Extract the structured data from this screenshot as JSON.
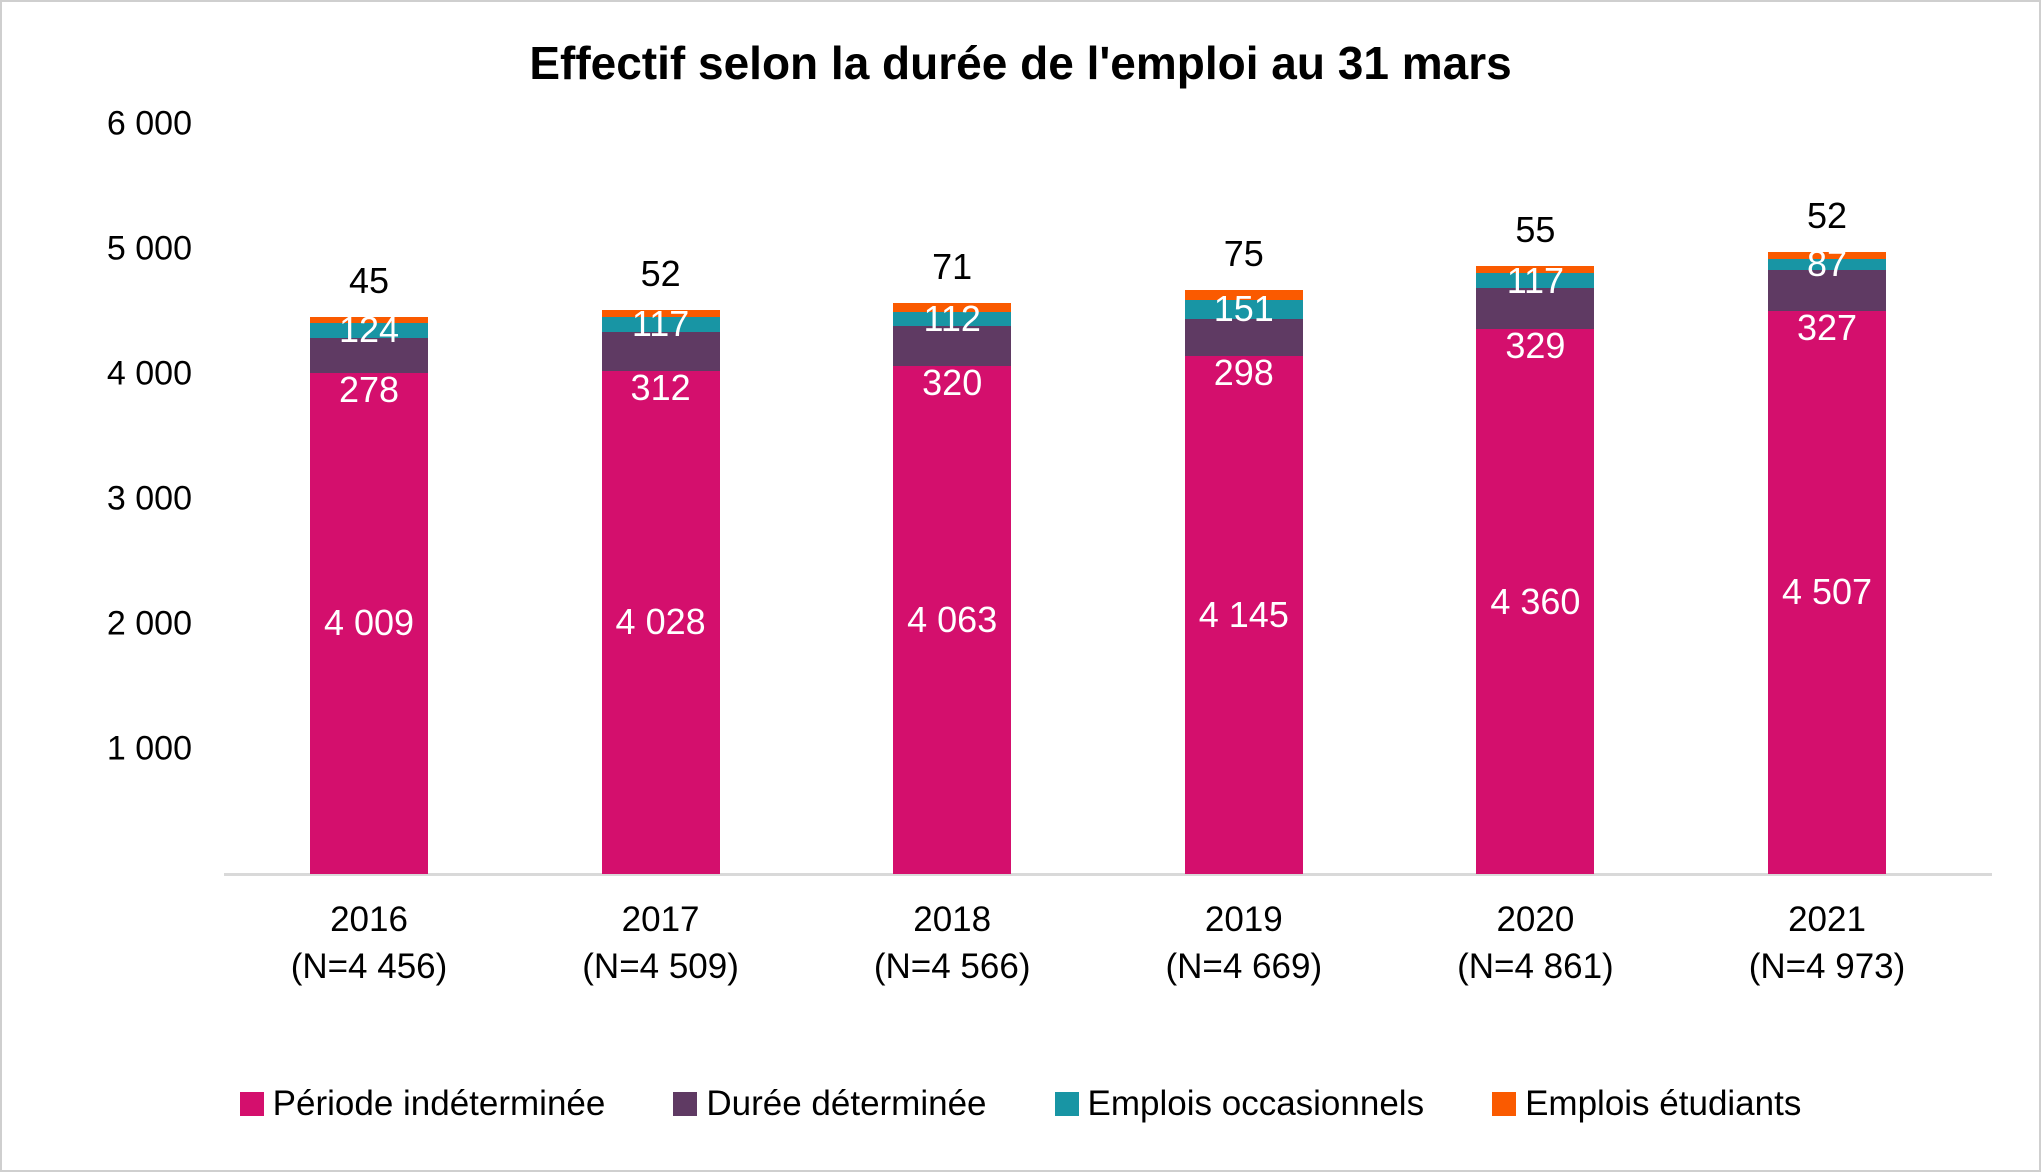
{
  "title": "Effectif selon la durée de l'emploi au 31 mars",
  "chart_data": {
    "type": "bar",
    "stacked": true,
    "title": "Effectif selon la durée de l'emploi au 31 mars",
    "categories": [
      "2016",
      "2017",
      "2018",
      "2019",
      "2020",
      "2021"
    ],
    "category_sublabels": [
      "(N=4 456)",
      "(N=4 509)",
      "(N=4 566)",
      "(N=4 669)",
      "(N=4 861)",
      "(N=4 973)"
    ],
    "totals": [
      4456,
      4509,
      4566,
      4669,
      4861,
      4973
    ],
    "series": [
      {
        "name": "Période indéterminée",
        "slug": "periode-indeterminee",
        "color": "#d40f6d",
        "values": [
          4009,
          4028,
          4063,
          4145,
          4360,
          4507
        ],
        "labels": [
          "4 009",
          "4 028",
          "4 063",
          "4 145",
          "4 360",
          "4 507"
        ],
        "label_color": "#ffffff",
        "label_placement": "center"
      },
      {
        "name": "Durée déterminée",
        "slug": "duree-determinee",
        "color": "#5f3a63",
        "values": [
          278,
          312,
          320,
          298,
          329,
          327
        ],
        "labels": [
          "278",
          "312",
          "320",
          "298",
          "329",
          "327"
        ],
        "label_color": "#ffffff",
        "label_placement": "below-segment"
      },
      {
        "name": "Emplois occasionnels",
        "slug": "emplois-occasionnels",
        "color": "#1895a4",
        "values": [
          124,
          117,
          112,
          151,
          117,
          87
        ],
        "labels": [
          "124",
          "117",
          "112",
          "151",
          "117",
          "87"
        ],
        "label_color": "#ffffff",
        "label_placement": "center"
      },
      {
        "name": "Emplois étudiants",
        "slug": "emplois-etudiants",
        "color": "#fa5a00",
        "values": [
          45,
          52,
          71,
          75,
          55,
          52
        ],
        "labels": [
          "45",
          "52",
          "71",
          "75",
          "55",
          "52"
        ],
        "label_color": "#000000",
        "label_placement": "above-bar"
      }
    ],
    "y_axis": {
      "min": 0,
      "max": 6000,
      "tick_values": [
        6000,
        5000,
        4000,
        3000,
        2000,
        1000
      ],
      "tick_labels": [
        "6 000",
        "5 000",
        "4 000",
        "3 000",
        "2 000",
        "1 000"
      ]
    },
    "legend_position": "bottom",
    "grid": false
  }
}
